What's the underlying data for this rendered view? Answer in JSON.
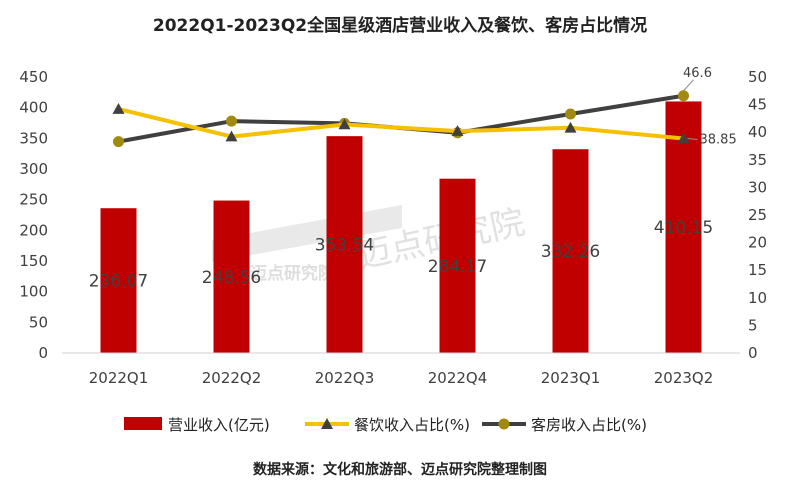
{
  "chart_data": {
    "type": "bar",
    "title": "2022Q1-2023Q2全国星级酒店营业收入及餐饮、客房占比情况",
    "categories": [
      "2022Q1",
      "2022Q2",
      "2022Q3",
      "2022Q4",
      "2023Q1",
      "2023Q2"
    ],
    "series": [
      {
        "name": "营业收入(亿元)",
        "type": "bar",
        "axis": "left",
        "color": "#c00000",
        "values": [
          236.07,
          248.56,
          353.54,
          284.17,
          332.26,
          410.15
        ],
        "labels": [
          "236.07",
          "248.56",
          "353.54",
          "284.17",
          "332.26",
          "410.15"
        ]
      },
      {
        "name": "餐饮收入占比(%)",
        "type": "line",
        "axis": "right",
        "color": "#f5c000",
        "marker": "triangle",
        "values": [
          44.2,
          39.2,
          41.4,
          40.2,
          40.8,
          38.85
        ],
        "labels": [
          "",
          "",
          "",
          "",
          "",
          "38.85"
        ]
      },
      {
        "name": "客房收入占比(%)",
        "type": "line",
        "axis": "right",
        "color": "#404040",
        "marker": "circle",
        "marker_color": "#a08a10",
        "values": [
          38.3,
          42.0,
          41.6,
          39.9,
          43.3,
          46.6
        ],
        "labels": [
          "",
          "",
          "",
          "",
          "",
          "46.6"
        ]
      }
    ],
    "y_left": {
      "min": 0,
      "max": 450,
      "step": 50,
      "ticks": [
        "0",
        "50",
        "100",
        "150",
        "200",
        "250",
        "300",
        "350",
        "400",
        "450"
      ]
    },
    "y_right": {
      "min": 0,
      "max": 50,
      "step": 5,
      "ticks": [
        "0",
        "5",
        "10",
        "15",
        "20",
        "25",
        "30",
        "35",
        "40",
        "45",
        "50"
      ]
    },
    "grid": false,
    "legend": "bottom"
  },
  "source": "数据来源：文化和旅游部、迈点研究院整理制图",
  "watermark": {
    "large": "迈点研究院",
    "small": "迈点研究院"
  }
}
